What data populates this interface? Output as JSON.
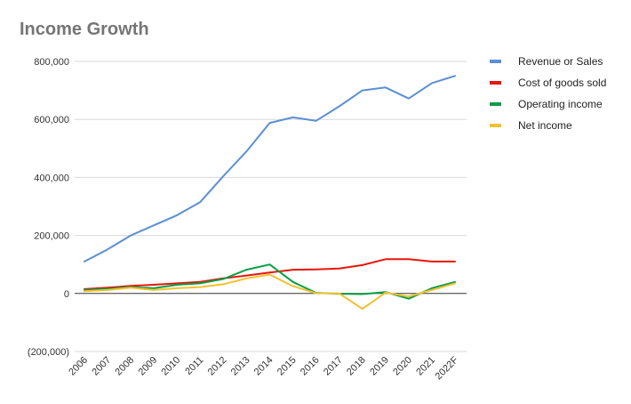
{
  "chart_data": {
    "type": "line",
    "title": "Income Growth",
    "xlabel": "",
    "ylabel": "",
    "ylim": [
      -200000,
      800000
    ],
    "yticks": [
      -200000,
      0,
      200000,
      400000,
      600000,
      800000
    ],
    "ytick_labels": [
      "(200,000)",
      "0",
      "200,000",
      "400,000",
      "600,000",
      "800,000"
    ],
    "grid": true,
    "legend_position": "right",
    "categories": [
      "2006",
      "2007",
      "2008",
      "2009",
      "2010",
      "2011",
      "2012",
      "2013",
      "2014",
      "2015",
      "2016",
      "2017",
      "2018",
      "2019",
      "2020",
      "2021",
      "2022F"
    ],
    "series": [
      {
        "name": "Revenue or Sales",
        "color": "#5b8fd6",
        "values": [
          110000,
          152000,
          200000,
          235000,
          270000,
          315000,
          405000,
          490000,
          588000,
          607000,
          595000,
          645000,
          700000,
          710000,
          672000,
          725000,
          750000
        ]
      },
      {
        "name": "Cost of goods sold",
        "color": "#e8160c",
        "values": [
          15000,
          20000,
          26000,
          30000,
          35000,
          40000,
          52000,
          62000,
          72000,
          82000,
          83000,
          86000,
          98000,
          118000,
          118000,
          110000,
          110000
        ]
      },
      {
        "name": "Operating income",
        "color": "#0a9e48",
        "values": [
          12000,
          16000,
          22000,
          18000,
          30000,
          35000,
          50000,
          82000,
          100000,
          40000,
          2000,
          -1000,
          -2000,
          5000,
          -18000,
          18000,
          40000
        ]
      },
      {
        "name": "Net income",
        "color": "#f2c12e",
        "values": [
          8000,
          12000,
          20000,
          12000,
          18000,
          22000,
          32000,
          52000,
          65000,
          25000,
          1000,
          0,
          -53000,
          3000,
          -10000,
          12000,
          35000
        ]
      }
    ]
  }
}
